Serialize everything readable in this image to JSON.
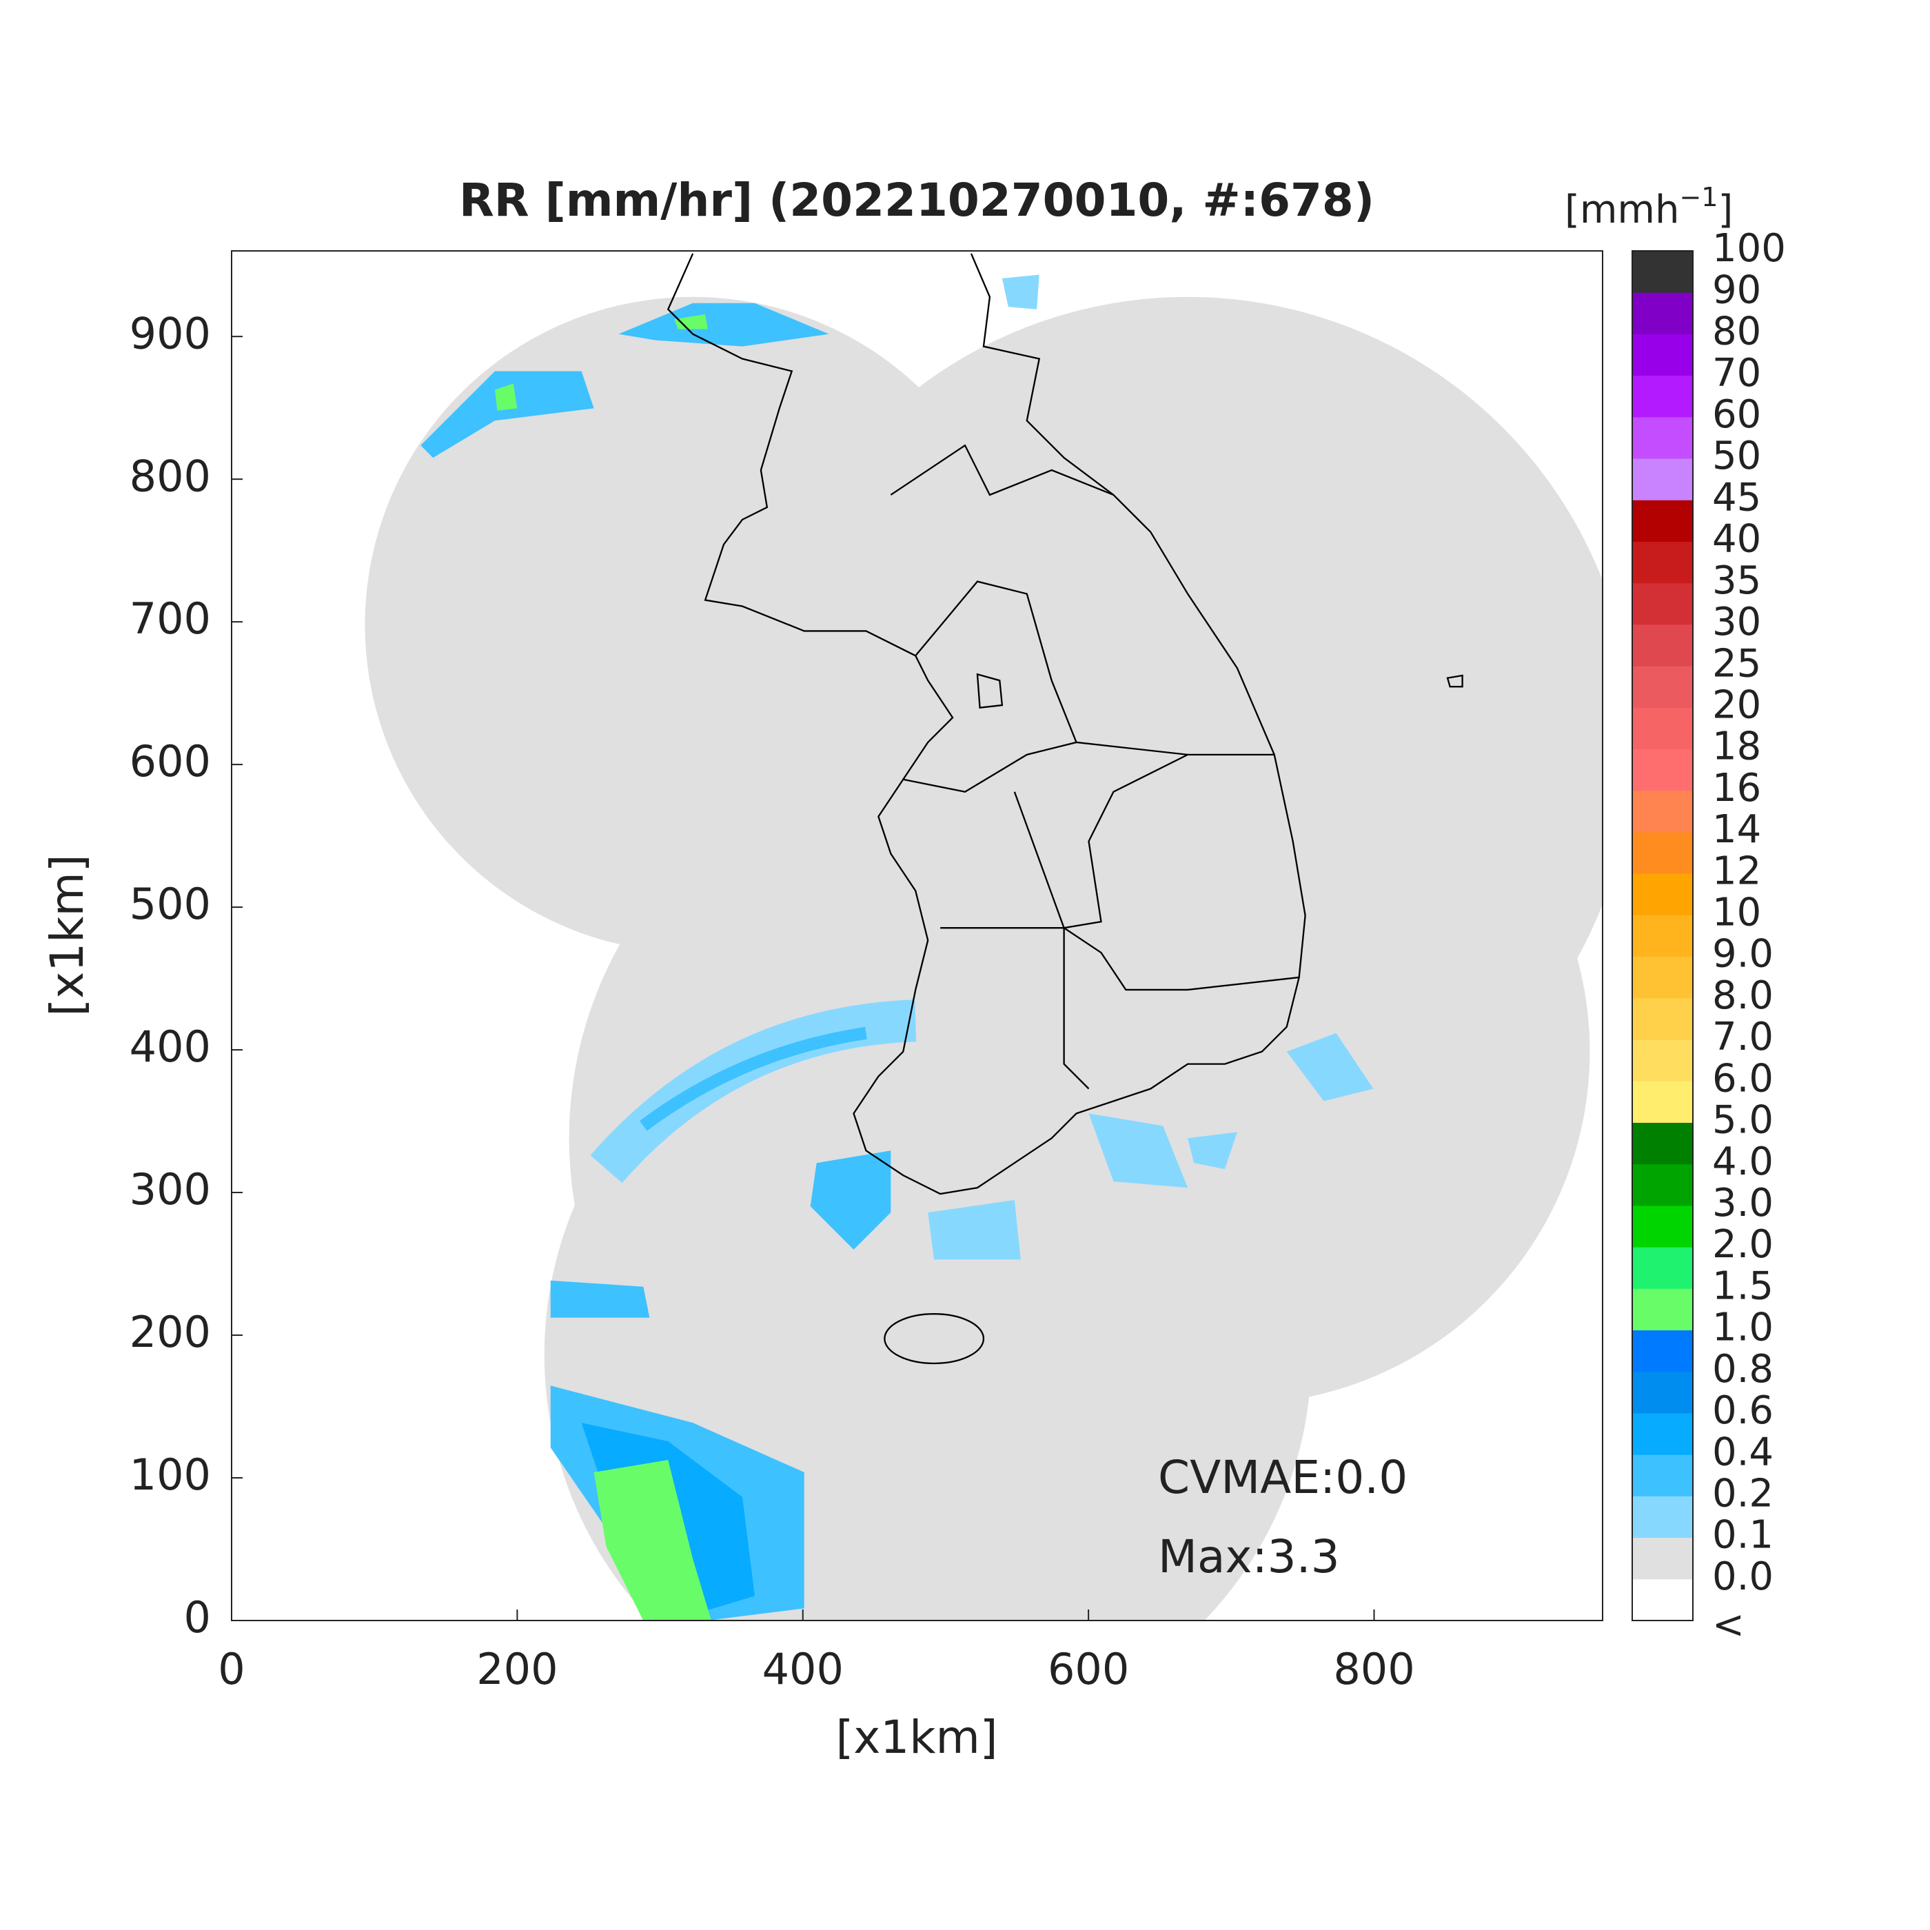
{
  "chart_data": {
    "type": "map",
    "title": "RR [mm/hr] (202210270010, #:678)",
    "xlabel": "[x1km]",
    "ylabel": "[x1km]",
    "xlim": [
      0,
      960
    ],
    "ylim": [
      0,
      960
    ],
    "xticks": [
      0,
      200,
      400,
      600,
      800
    ],
    "yticks": [
      0,
      100,
      200,
      300,
      400,
      500,
      600,
      700,
      800,
      900
    ],
    "annotations": [
      "CVMAE:0.0",
      "Max:3.3"
    ],
    "colorbar": {
      "unit": "[mmh",
      "unit_exponent": "−1",
      "unit_close": "]",
      "labels": [
        "<",
        "0.0",
        "0.1",
        "0.2",
        "0.4",
        "0.6",
        "0.8",
        "1.0",
        "1.5",
        "2.0",
        "3.0",
        "4.0",
        "5.0",
        "6.0",
        "7.0",
        "8.0",
        "9.0",
        "10",
        "12",
        "14",
        "16",
        "18",
        "20",
        "25",
        "30",
        "35",
        "40",
        "45",
        "50",
        "60",
        "70",
        "80",
        "90",
        "100"
      ],
      "colors": [
        "#ffffff",
        "#e0e0e0",
        "#87d8ff",
        "#3ec1ff",
        "#07abff",
        "#008df0",
        "#007aff",
        "#69fc69",
        "#1ef26e",
        "#00d500",
        "#00a400",
        "#008000",
        "#ffee6e",
        "#ffdd5e",
        "#ffd04a",
        "#ffc233",
        "#ffb41e",
        "#ffa400",
        "#ff8c1e",
        "#ff8450",
        "#ff6e6e",
        "#f66466",
        "#ea5a5e",
        "#e04850",
        "#d33036",
        "#c81c1c",
        "#b30000",
        "#c983ff",
        "#c34dff",
        "#b31aff",
        "#9900ea",
        "#8000c8",
        "#333333"
      ]
    }
  }
}
